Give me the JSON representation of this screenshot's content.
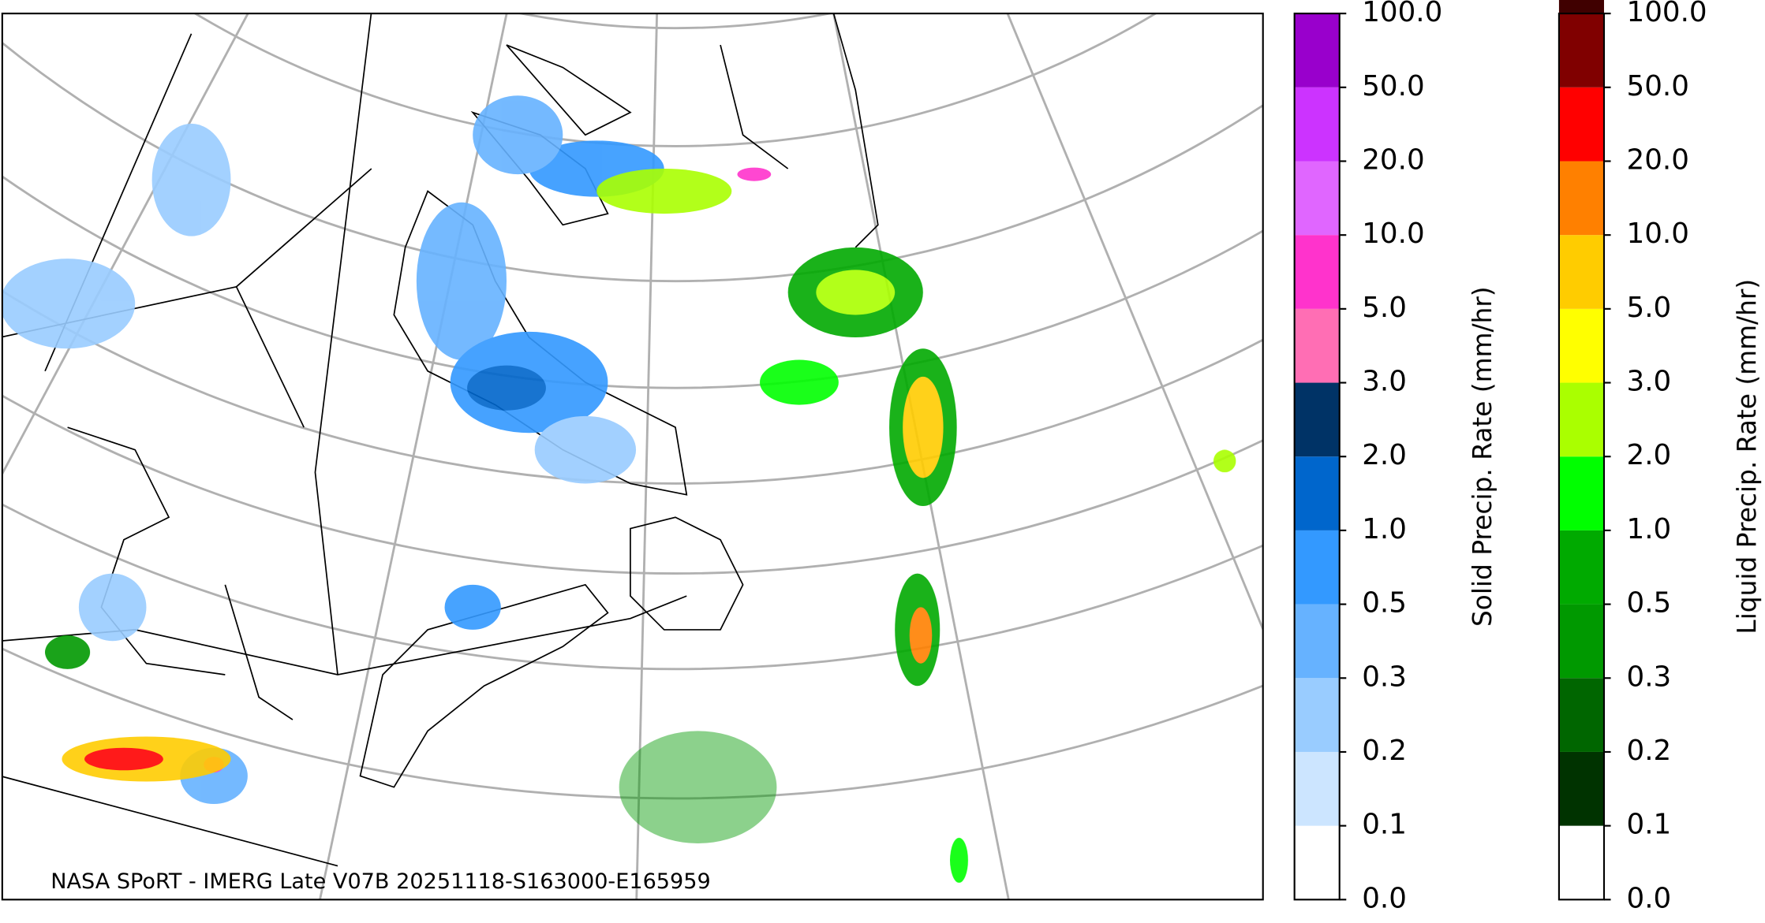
{
  "footer": "NASA SPoRT - IMERG Late V07B 20251118-S163000-E165959",
  "colorbars": [
    {
      "label": "Solid Precip. Rate (mm/hr)",
      "ticks": [
        {
          "value": 0,
          "label": "0.0"
        },
        {
          "value": 0.1,
          "label": "0.1"
        },
        {
          "value": 0.2,
          "label": "0.2"
        },
        {
          "value": 0.3,
          "label": "0.3"
        },
        {
          "value": 0.5,
          "label": "0.5"
        },
        {
          "value": 1,
          "label": "1.0"
        },
        {
          "value": 2,
          "label": "2.0"
        },
        {
          "value": 3,
          "label": "3.0"
        },
        {
          "value": 5,
          "label": "5.0"
        },
        {
          "value": 10,
          "label": "10.0"
        },
        {
          "value": 20,
          "label": "20.0"
        },
        {
          "value": 50,
          "label": "50.0"
        },
        {
          "value": 100,
          "label": "100.0"
        }
      ],
      "colors": [
        "#ffffff",
        "#cce5ff",
        "#99ccff",
        "#66b2ff",
        "#3399ff",
        "#0066cc",
        "#003366",
        "#ff6eb4",
        "#ff33cc",
        "#e066ff",
        "#cc33ff",
        "#9900cc"
      ]
    },
    {
      "label": "Liquid Precip. Rate (mm/hr)",
      "ticks": [
        {
          "value": 0,
          "label": "0.0"
        },
        {
          "value": 0.1,
          "label": "0.1"
        },
        {
          "value": 0.2,
          "label": "0.2"
        },
        {
          "value": 0.3,
          "label": "0.3"
        },
        {
          "value": 0.5,
          "label": "0.5"
        },
        {
          "value": 1,
          "label": "1.0"
        },
        {
          "value": 2,
          "label": "2.0"
        },
        {
          "value": 3,
          "label": "3.0"
        },
        {
          "value": 5,
          "label": "5.0"
        },
        {
          "value": 10,
          "label": "10.0"
        },
        {
          "value": 20,
          "label": "20.0"
        },
        {
          "value": 50,
          "label": "50.0"
        },
        {
          "value": 100,
          "label": "100.0"
        }
      ],
      "colors": [
        "#ffffff",
        "#003300",
        "#006600",
        "#009900",
        "#00aa00",
        "#00ff00",
        "#aaff00",
        "#ffff00",
        "#ffcc00",
        "#ff8000",
        "#ff0000",
        "#800000",
        "#400000"
      ]
    }
  ]
}
